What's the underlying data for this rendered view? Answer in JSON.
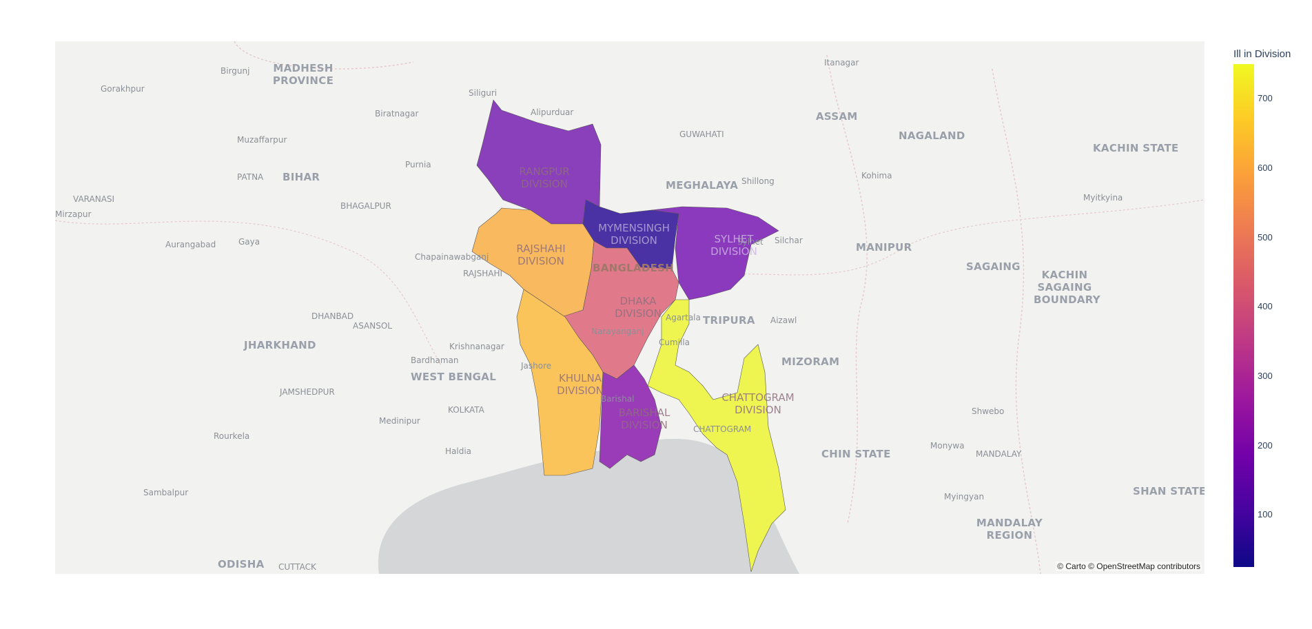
{
  "map": {
    "attribution": "© Carto © OpenStreetMap contributors",
    "region_labels": [
      "MADHESH PROVINCE",
      "BIHAR",
      "JHARKHAND",
      "WEST BENGAL",
      "ODISHA",
      "ASSAM",
      "NAGALAND",
      "MEGHALAYA",
      "MANIPUR",
      "TRIPURA",
      "MIZORAM",
      "KACHIN STATE",
      "SAGAING",
      "KACHIN SAGAING BOUNDARY",
      "CHIN STATE",
      "SHAN STATE",
      "MANDALAY REGION",
      "BANGLADESH"
    ],
    "city_labels": [
      "Birgunj",
      "Gorakhpur",
      "Siliguri",
      "Alipurduar",
      "Biratnagar",
      "Muzaffarpur",
      "Purnia",
      "PATNA",
      "VARANASI",
      "Mirzapur",
      "BHAGALPUR",
      "Aurangabad",
      "Gaya",
      "Chapainawabganj",
      "RAJSHAHI",
      "DHANBAD",
      "ASANSOL",
      "Krishnanagar",
      "Bardhaman",
      "JAMSHEDPUR",
      "Medinipur",
      "KOLKATA",
      "Rourkela",
      "Haldia",
      "Sambalpur",
      "CUTTACK",
      "GUWAHATI",
      "Shillong",
      "Itanagar",
      "Kohima",
      "Myitkyina",
      "Sylhet",
      "Silchar",
      "Agartala",
      "Aizawl",
      "Cumilla",
      "Narayanganj",
      "Jashore",
      "Barishal",
      "Shwebo",
      "Monywa",
      "MANDALAY",
      "Myingyan",
      "CHATTOGRAM"
    ],
    "divisions": [
      {
        "name": "RANGPUR DIVISION",
        "value": 240,
        "color": "#8a3fbb"
      },
      {
        "name": "RAJSHAHI DIVISION",
        "value": 615,
        "color": "#f9b95f"
      },
      {
        "name": "MYMENSINGH DIVISION",
        "value": 110,
        "color": "#4a32a4"
      },
      {
        "name": "SYLHET DIVISION",
        "value": 230,
        "color": "#8b3abd"
      },
      {
        "name": "DHAKA DIVISION",
        "value": 440,
        "color": "#e07a8a"
      },
      {
        "name": "KHULNA DIVISION",
        "value": 640,
        "color": "#fbc45a"
      },
      {
        "name": "BARISHAL DIVISION",
        "value": 255,
        "color": "#9a3cb8"
      },
      {
        "name": "CHATTOGRAM DIVISION",
        "value": 745,
        "color": "#eef450"
      }
    ]
  },
  "colorbar": {
    "title": "Ill in Division",
    "ticks": [
      "100",
      "200",
      "300",
      "400",
      "500",
      "600",
      "700"
    ],
    "tick_values": [
      100,
      200,
      300,
      400,
      500,
      600,
      700
    ],
    "min": 25,
    "max": 750,
    "colorscale": "Plasma"
  }
}
